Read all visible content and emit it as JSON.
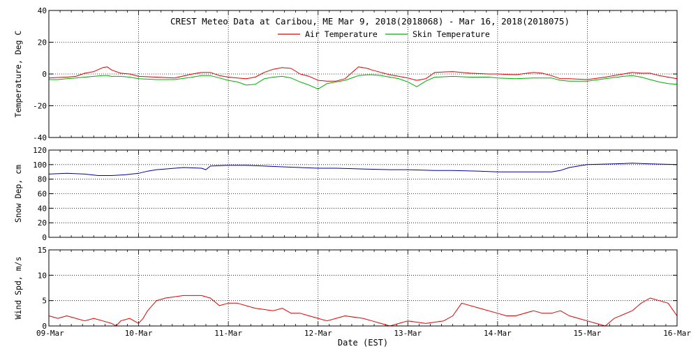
{
  "title": "CREST Meteo Data at Caribou, ME   Mar  9, 2018(2018068) - Mar 16, 2018(2018075)",
  "xlabel": "Date (EST)",
  "colors": {
    "air": "#e00000",
    "skin": "#00b000",
    "snow": "#0000a0",
    "wind": "#e00000",
    "axis": "#000000"
  },
  "chart_data": [
    {
      "type": "line",
      "ylabel": "Temperature, Deg C",
      "ylim": [
        -40,
        40
      ],
      "yticks": [
        "40",
        "20",
        "0",
        "-20",
        "-40"
      ],
      "xlim": [
        0,
        7
      ],
      "grid": true,
      "legend_position": "top-center",
      "series": [
        {
          "name": "Air Temperature",
          "x": [
            0,
            0.1,
            0.2,
            0.3,
            0.4,
            0.5,
            0.6,
            0.65,
            0.7,
            0.8,
            0.9,
            1.0,
            1.2,
            1.4,
            1.6,
            1.7,
            1.8,
            1.9,
            2.0,
            2.1,
            2.2,
            2.3,
            2.4,
            2.5,
            2.6,
            2.7,
            2.8,
            2.9,
            3.0,
            3.1,
            3.2,
            3.3,
            3.45,
            3.55,
            3.6,
            3.7,
            3.8,
            3.9,
            4.0,
            4.1,
            4.2,
            4.3,
            4.5,
            4.7,
            4.9,
            5.0,
            5.2,
            5.4,
            5.5,
            5.6,
            5.7,
            5.8,
            6.0,
            6.2,
            6.4,
            6.5,
            6.6,
            6.7,
            6.8,
            6.9,
            7.0
          ],
          "y": [
            -2.5,
            -2.2,
            -2.0,
            -1.5,
            0.5,
            1.5,
            4.0,
            4.5,
            2.5,
            0.5,
            0.0,
            -1.5,
            -2.0,
            -2.5,
            0.0,
            1.0,
            1.0,
            -1.0,
            -2.0,
            -2.5,
            -3.0,
            -2.0,
            1.0,
            3.0,
            4.0,
            3.5,
            0.0,
            -1.5,
            -4.0,
            -4.5,
            -4.5,
            -3.0,
            4.5,
            3.5,
            2.5,
            1.0,
            -0.5,
            -1.5,
            -2.5,
            -4.0,
            -3.0,
            1.0,
            1.5,
            0.5,
            0.0,
            0.0,
            -0.5,
            1.0,
            0.5,
            -1.0,
            -3.0,
            -3.0,
            -3.5,
            -2.0,
            0.0,
            1.0,
            0.5,
            0.5,
            -1.0,
            -2.0,
            -3.0
          ]
        },
        {
          "name": "Skin Temperature",
          "x": [
            0,
            0.1,
            0.2,
            0.3,
            0.4,
            0.5,
            0.6,
            0.65,
            0.7,
            0.8,
            0.9,
            1.0,
            1.2,
            1.4,
            1.6,
            1.7,
            1.8,
            1.9,
            2.0,
            2.1,
            2.2,
            2.3,
            2.4,
            2.5,
            2.6,
            2.7,
            2.8,
            2.9,
            3.0,
            3.1,
            3.2,
            3.3,
            3.45,
            3.55,
            3.6,
            3.7,
            3.8,
            3.9,
            4.0,
            4.1,
            4.2,
            4.3,
            4.5,
            4.7,
            4.9,
            5.0,
            5.2,
            5.4,
            5.5,
            5.6,
            5.7,
            5.8,
            6.0,
            6.2,
            6.4,
            6.5,
            6.6,
            6.7,
            6.8,
            6.9,
            7.0
          ],
          "y": [
            -3.5,
            -3.5,
            -3.0,
            -2.5,
            -2.0,
            -1.5,
            -1.0,
            -1.0,
            -1.5,
            -1.5,
            -2.0,
            -3.0,
            -3.5,
            -3.5,
            -2.0,
            -1.0,
            -1.0,
            -2.5,
            -4.0,
            -5.0,
            -7.0,
            -6.5,
            -3.0,
            -2.0,
            -1.5,
            -2.5,
            -5.0,
            -7.0,
            -9.5,
            -6.0,
            -5.0,
            -4.0,
            -1.0,
            -0.5,
            -0.5,
            -1.0,
            -2.0,
            -3.0,
            -5.0,
            -8.0,
            -4.5,
            -2.0,
            -1.5,
            -2.0,
            -2.0,
            -2.5,
            -3.0,
            -2.5,
            -2.5,
            -2.5,
            -4.0,
            -4.5,
            -4.5,
            -3.0,
            -1.5,
            -1.0,
            -2.0,
            -3.5,
            -5.0,
            -6.0,
            -6.5
          ]
        }
      ]
    },
    {
      "type": "line",
      "ylabel": "Snow Dep, cm",
      "ylim": [
        0,
        120
      ],
      "yticks": [
        "120",
        "100",
        "80",
        "60",
        "40",
        "20",
        "0"
      ],
      "xlim": [
        0,
        7
      ],
      "grid": true,
      "series": [
        {
          "x": [
            0,
            0.2,
            0.4,
            0.55,
            0.7,
            0.85,
            1.0,
            1.1,
            1.2,
            1.3,
            1.5,
            1.7,
            1.75,
            1.8,
            2.0,
            2.2,
            2.4,
            2.6,
            2.8,
            3.0,
            3.2,
            3.5,
            3.8,
            4.0,
            4.3,
            4.5,
            4.8,
            5.0,
            5.3,
            5.5,
            5.6,
            5.7,
            5.8,
            6.0,
            6.3,
            6.5,
            6.7,
            7.0
          ],
          "y": [
            87,
            88,
            87,
            85,
            85,
            86,
            88,
            91,
            93,
            94,
            96,
            95,
            93,
            98,
            99,
            99,
            98,
            97,
            96,
            95,
            95,
            94,
            93,
            93,
            92,
            92,
            91,
            90,
            90,
            90,
            90,
            92,
            96,
            100,
            101,
            102,
            101,
            100
          ]
        }
      ]
    },
    {
      "type": "line",
      "ylabel": "Wind Spd, m/s",
      "ylim": [
        0,
        15
      ],
      "yticks": [
        "15",
        "10",
        "5",
        "0"
      ],
      "xlim": [
        0,
        7
      ],
      "xticks": [
        "09-Mar",
        "10-Mar",
        "11-Mar",
        "12-Mar",
        "13-Mar",
        "14-Mar",
        "15-Mar",
        "16-Mar"
      ],
      "grid": true,
      "series": [
        {
          "x": [
            0,
            0.1,
            0.2,
            0.3,
            0.4,
            0.5,
            0.6,
            0.7,
            0.75,
            0.8,
            0.9,
            1.0,
            1.05,
            1.1,
            1.2,
            1.3,
            1.5,
            1.7,
            1.8,
            1.9,
            2.0,
            2.1,
            2.3,
            2.5,
            2.6,
            2.7,
            2.8,
            2.9,
            3.0,
            3.1,
            3.2,
            3.3,
            3.5,
            3.6,
            3.7,
            3.8,
            3.9,
            4.0,
            4.2,
            4.4,
            4.5,
            4.6,
            4.8,
            5.0,
            5.1,
            5.2,
            5.4,
            5.5,
            5.6,
            5.7,
            5.8,
            5.9,
            6.0,
            6.1,
            6.2,
            6.3,
            6.5,
            6.6,
            6.7,
            6.8,
            6.9,
            7.0
          ],
          "y": [
            2.0,
            1.5,
            2.0,
            1.5,
            1.0,
            1.5,
            1.0,
            0.5,
            0.0,
            1.0,
            1.5,
            0.5,
            1.5,
            3.0,
            5.0,
            5.5,
            6.0,
            6.0,
            5.5,
            4.0,
            4.5,
            4.5,
            3.5,
            3.0,
            3.5,
            2.5,
            2.5,
            2.0,
            1.5,
            1.0,
            1.5,
            2.0,
            1.5,
            1.0,
            0.5,
            0.0,
            0.5,
            1.0,
            0.5,
            1.0,
            2.0,
            4.5,
            3.5,
            2.5,
            2.0,
            2.0,
            3.0,
            2.5,
            2.5,
            3.0,
            2.0,
            1.5,
            1.0,
            0.5,
            0.0,
            1.5,
            3.0,
            4.5,
            5.5,
            5.0,
            4.5,
            2.0
          ]
        }
      ]
    }
  ]
}
